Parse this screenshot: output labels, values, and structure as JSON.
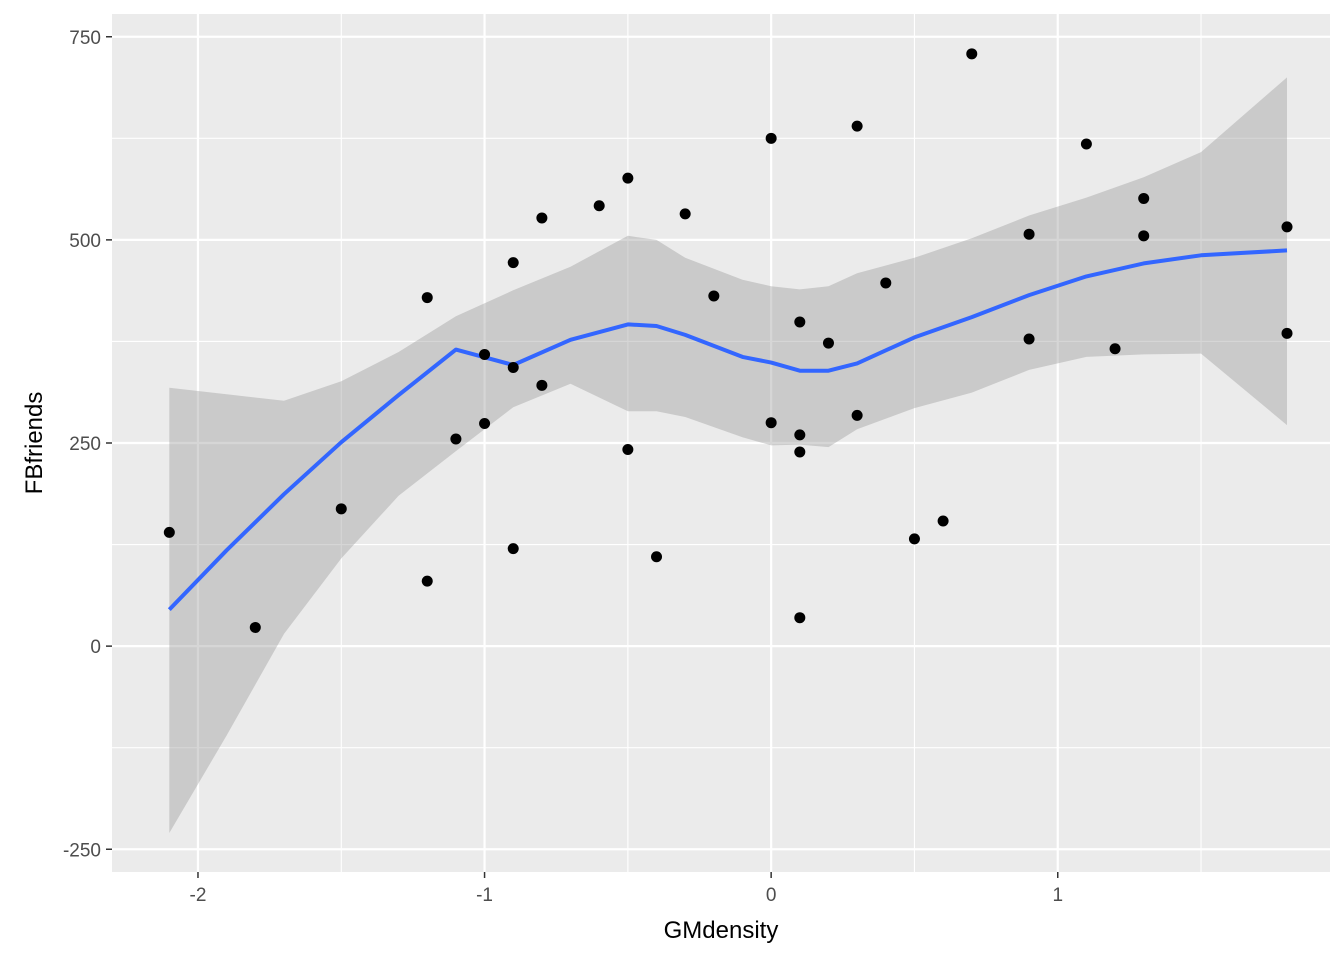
{
  "chart_data": {
    "type": "scatter",
    "xlabel": "GMdensity",
    "ylabel": "FBfriends",
    "xlim": [
      -2.3,
      1.95
    ],
    "ylim": [
      -278,
      778
    ],
    "x_ticks": [
      -2,
      -1,
      0,
      1
    ],
    "x_tick_labels": [
      "-2",
      "-1",
      "0",
      "1"
    ],
    "y_ticks": [
      -250,
      0,
      250,
      500,
      750
    ],
    "y_tick_labels": [
      "-250",
      "0",
      "250",
      "500",
      "750"
    ],
    "grid": true,
    "legend": "none",
    "points": {
      "color": "#000000",
      "x": [
        -2.1,
        -1.8,
        -1.5,
        -1.2,
        -1.2,
        -1.1,
        -1.0,
        -1.0,
        -0.9,
        -0.9,
        -0.9,
        -0.8,
        -0.8,
        -0.6,
        -0.5,
        -0.5,
        -0.4,
        -0.3,
        -0.2,
        0.0,
        0.0,
        0.1,
        0.1,
        0.1,
        0.1,
        0.2,
        0.3,
        0.3,
        0.4,
        0.5,
        0.6,
        0.7,
        0.9,
        0.9,
        1.1,
        1.2,
        1.3,
        1.3,
        1.8,
        1.8
      ],
      "y": [
        140,
        23,
        169,
        429,
        80,
        255,
        359,
        274,
        472,
        343,
        120,
        527,
        321,
        542,
        576,
        242,
        110,
        532,
        431,
        625,
        275,
        399,
        260,
        239,
        35,
        373,
        640,
        284,
        447,
        132,
        154,
        729,
        507,
        378,
        618,
        366,
        551,
        505,
        516,
        385
      ]
    },
    "smooth": {
      "color": "#3366ff",
      "band_color": "#999999",
      "x": [
        -2.1,
        -1.9,
        -1.7,
        -1.5,
        -1.3,
        -1.1,
        -0.9,
        -0.7,
        -0.5,
        -0.4,
        -0.3,
        -0.1,
        0.0,
        0.1,
        0.2,
        0.3,
        0.5,
        0.7,
        0.9,
        1.1,
        1.3,
        1.5,
        1.8
      ],
      "fit": [
        45,
        118,
        187,
        251,
        309,
        365,
        346,
        377,
        396,
        394,
        383,
        356,
        349,
        339,
        339,
        348,
        380,
        405,
        432,
        455,
        471,
        481,
        487
      ],
      "lower": [
        -230,
        -110,
        15,
        108,
        185,
        240,
        294,
        323,
        289,
        289,
        282,
        257,
        247,
        248,
        245,
        267,
        293,
        312,
        340,
        356,
        359,
        360,
        272
      ],
      "upper": [
        318,
        310,
        302,
        326,
        362,
        406,
        438,
        467,
        505,
        500,
        478,
        451,
        443,
        439,
        443,
        459,
        478,
        502,
        530,
        552,
        577,
        608,
        700
      ]
    }
  }
}
